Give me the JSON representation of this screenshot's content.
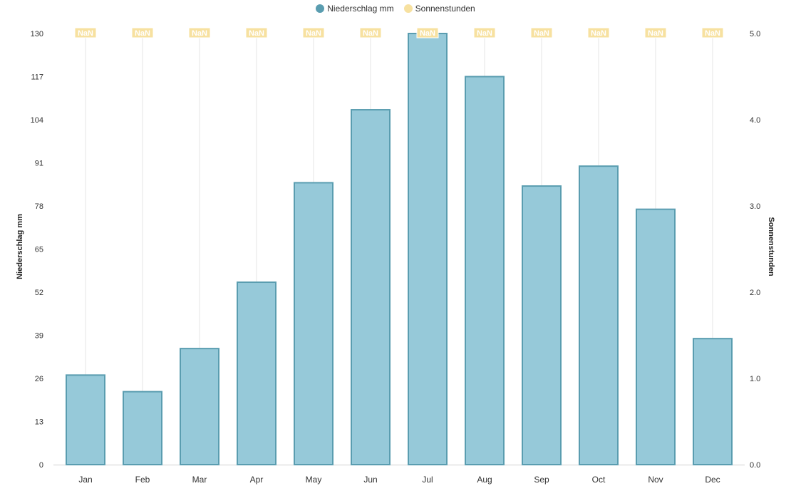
{
  "colors": {
    "precip_fill": "#96c9d9",
    "precip_stroke": "#5a9db0",
    "sun": "#f7e1a0",
    "grid": "#e6e6e6",
    "axis_text": "#333333"
  },
  "chart_data": {
    "type": "bar",
    "categories": [
      "Jan",
      "Feb",
      "Mar",
      "Apr",
      "May",
      "Jun",
      "Jul",
      "Aug",
      "Sep",
      "Oct",
      "Nov",
      "Dec"
    ],
    "series": [
      {
        "name": "Niederschlag mm",
        "type": "bar",
        "axis": "left",
        "values": [
          27,
          22,
          35,
          55,
          85,
          107,
          130,
          117,
          84,
          90,
          77,
          38
        ]
      },
      {
        "name": "Sonnenstunden",
        "type": "line",
        "axis": "right",
        "values": [
          null,
          null,
          null,
          null,
          null,
          null,
          null,
          null,
          null,
          null,
          null,
          null
        ],
        "point_labels": [
          "NaN",
          "NaN",
          "NaN",
          "NaN",
          "NaN",
          "NaN",
          "NaN",
          "NaN",
          "NaN",
          "NaN",
          "NaN",
          "NaN"
        ]
      }
    ],
    "ylabel_left": "Niederschlag mm",
    "ylabel_right": "Sonnenstunden",
    "ylim_left": [
      0,
      130
    ],
    "ylim_right": [
      0,
      5
    ],
    "yticks_left": [
      "0",
      "13",
      "26",
      "39",
      "52",
      "65",
      "78",
      "91",
      "104",
      "117",
      "130"
    ],
    "yticks_right": [
      "0.0",
      "1.0",
      "2.0",
      "3.0",
      "4.0",
      "5.0"
    ],
    "legend_position": "top-center",
    "grid": "vertical"
  }
}
